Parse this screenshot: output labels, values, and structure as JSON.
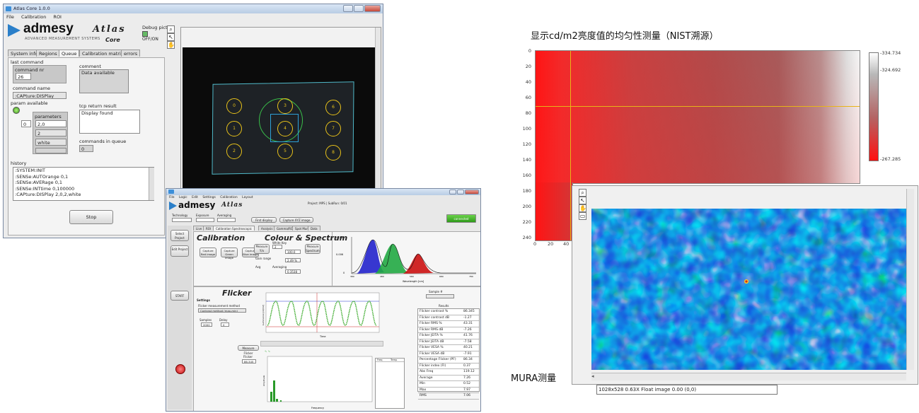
{
  "atlas": {
    "title": "Atlas Core 1.0.0",
    "menu": [
      "File",
      "Calibration",
      "ROI"
    ],
    "logo_text": "admesy",
    "logo_script": "Atlas",
    "logo_sub": "ADVANCED MEASUREMENT SYSTEMS",
    "logo_core": "Core",
    "debug_label": "Debug picture",
    "debug_state": "OFF/ON",
    "tabs": [
      "System info",
      "Regions",
      "Queue",
      "Calibration matrix",
      "errors"
    ],
    "active_tab": "Queue",
    "last_command_label": "last command",
    "command_nr_label": "command nr",
    "command_nr": "26",
    "command_name_label": "command name",
    "command_name": ":CAPture:DISPlay",
    "param_available_label": "param available",
    "parameters_label": "parameters",
    "param_index": "0",
    "parameters": [
      "2,0",
      "2",
      "white",
      ""
    ],
    "comment_label": "comment",
    "comment": "Data available",
    "tcp_label": "tcp return result",
    "tcp_result": "Display found",
    "queue_label": "commands in queue",
    "queue_count": "0",
    "history_label": "history",
    "history": [
      ":SYSTEM:INIT",
      ":SENSe:AUTOrange 0,1",
      ":SENSe:AVERage 0,1",
      ":SENSe:INTtime 0,100000",
      ":CAPture:DISPlay 2,0,2,white"
    ],
    "stop_label": "Stop",
    "rings": [
      "0",
      "3",
      "6",
      "1",
      "4",
      "7",
      "2",
      "5",
      "8"
    ]
  },
  "spectrum": {
    "menu": [
      "File",
      "Logic",
      "Edit",
      "Settings",
      "Calibration",
      "Layout"
    ],
    "project_info": "Project: MPS  |  SubRun: 0/01",
    "top_labels": [
      "Technology",
      "Exposure",
      "Averaging"
    ],
    "top_buttons": [
      "First display",
      "Capture XYZ image"
    ],
    "status_chip": "connected",
    "sidebar_buttons": [
      "Select Project",
      "Edit Project",
      "START"
    ],
    "tabs": [
      "Live",
      "ROI",
      "Calibration Spectroscopic",
      "Analysis",
      "Gamma/RGB",
      "Spot Mura",
      "Data"
    ],
    "calibration_title": "Calibration",
    "calibration_buttons": [
      "Capture Red image",
      "Capture Green image",
      "Capture Blue image"
    ],
    "colour_title": "Colour & Spectrum",
    "measure_button": "Measure Y/x",
    "measure_spectrum_button": "Measure Spectrum",
    "measure_fields": [
      "White Key",
      "Gain range",
      "Avg",
      "Averaging"
    ],
    "measure_values": [
      "2",
      "100.0",
      "2.49 %",
      "0.3538"
    ],
    "spectrum_xlabel": "Wavelength [nm]",
    "spectrum_xticks": [
      "380",
      "400",
      "420",
      "440",
      "460",
      "480",
      "500",
      "520",
      "540",
      "560",
      "580",
      "600",
      "620",
      "640",
      "660",
      "680",
      "700",
      "720",
      "740",
      "760",
      "780"
    ],
    "spectrum_yticks": [
      "0.012",
      "0.01",
      "0.008",
      "0.006",
      "0.004",
      "0.002",
      "0"
    ],
    "flicker_title": "Flicker",
    "flicker_settings_label": "Settings",
    "flicker_method_label": "Flicker measurement method",
    "flicker_method_value": "Contrast method (max-min)",
    "flicker_fields": [
      "Samples",
      "Delay"
    ],
    "flicker_values": [
      "2000",
      "0"
    ],
    "measure_flicker_button": "Measure Flicker",
    "flicker_value_label": "Flicker",
    "flicker_value": "86.345",
    "flicker_xlabel": "Time",
    "flicker_ylabel": "Luminance [cd/m2]",
    "fft_ylabel": "Amplitude",
    "fft_xlabel": "Frequency",
    "sample_label": "Sample #",
    "results_label": "Results",
    "results_rows": [
      [
        "Flicker contrast %",
        "86.345"
      ],
      [
        "Flicker contrast dB",
        "-1.27"
      ],
      [
        "Flicker RMS %",
        "43.31"
      ],
      [
        "Flicker RMS dB",
        "-7.26"
      ],
      [
        "Flicker JEITA %",
        "41.76"
      ],
      [
        "Flicker JEITA dB",
        "-7.58"
      ],
      [
        "Flicker VESA %",
        "40.21"
      ],
      [
        "Flicker VESA dB",
        "-7.91"
      ],
      [
        "Percentage Flicker (PF)",
        "86.34"
      ],
      [
        "Flicker index (FI)",
        "0.37"
      ],
      [
        "Abs Freq",
        "119.12"
      ],
      [
        "Average",
        "7.26"
      ],
      [
        "Min",
        "0.52"
      ],
      [
        "Max",
        "7.97"
      ],
      [
        "RMS",
        "7.06"
      ]
    ],
    "freq_table_headers": [
      "Freq",
      "Temp"
    ]
  },
  "heatmap": {
    "title": "显示cd/m2亮度值的均匀性测量（NIST溯源）",
    "y_ticks": [
      "0",
      "20",
      "40",
      "60",
      "80",
      "100",
      "120",
      "140",
      "160",
      "180",
      "200",
      "220",
      "240"
    ],
    "x_ticks": [
      "0",
      "20",
      "40"
    ],
    "colorbar_labels": [
      "-334.734",
      "-324.692",
      "-267.285"
    ],
    "colors": {
      "low": "#ff1a1a",
      "mid": "#b85050",
      "high": "#ffffff"
    }
  },
  "mura": {
    "label": "MURA测量",
    "status": "1028x528 0.63X Float image  0.00    (0,0)",
    "tools": [
      "zoom-icon",
      "pointer-icon",
      "pan-icon",
      "rect-icon"
    ]
  }
}
